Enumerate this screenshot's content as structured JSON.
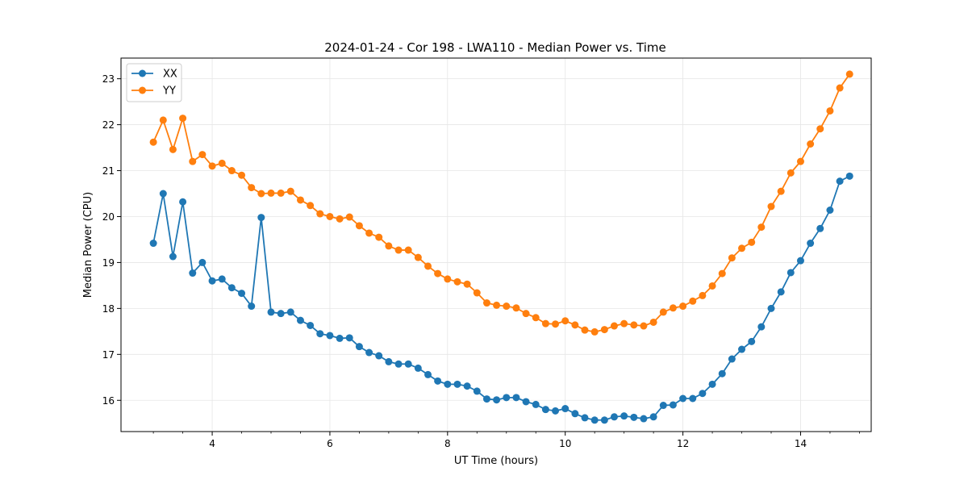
{
  "chart_data": {
    "type": "line",
    "title": "2024-01-24 - Cor 198 - LWA110 - Median Power vs. Time",
    "xlabel": "UT Time (hours)",
    "ylabel": "Median Power (CPU)",
    "xlim": [
      2.45,
      15.2
    ],
    "ylim": [
      15.32,
      23.45
    ],
    "xticks": [
      4,
      6,
      8,
      10,
      12,
      14
    ],
    "xtick_labels": [
      "4",
      "6",
      "8",
      "10",
      "12",
      "14"
    ],
    "yticks": [
      16,
      17,
      18,
      19,
      20,
      21,
      22,
      23
    ],
    "ytick_labels": [
      "16",
      "17",
      "18",
      "19",
      "20",
      "21",
      "22",
      "23"
    ],
    "grid": true,
    "legend_position": "top-left",
    "x": [
      3.0,
      3.167,
      3.333,
      3.5,
      3.667,
      3.833,
      4.0,
      4.167,
      4.333,
      4.5,
      4.667,
      4.833,
      5.0,
      5.167,
      5.333,
      5.5,
      5.667,
      5.833,
      6.0,
      6.167,
      6.333,
      6.5,
      6.667,
      6.833,
      7.0,
      7.167,
      7.333,
      7.5,
      7.667,
      7.833,
      8.0,
      8.167,
      8.333,
      8.5,
      8.667,
      8.833,
      9.0,
      9.167,
      9.333,
      9.5,
      9.667,
      9.833,
      10.0,
      10.167,
      10.333,
      10.5,
      10.667,
      10.833,
      11.0,
      11.167,
      11.333,
      11.5,
      11.667,
      11.833,
      12.0,
      12.167,
      12.333,
      12.5,
      12.667,
      12.833,
      13.0,
      13.167,
      13.333,
      13.5,
      13.667,
      13.833,
      14.0,
      14.167,
      14.333,
      14.5,
      14.667,
      14.833
    ],
    "series": [
      {
        "name": "XX",
        "color": "#1f77b4",
        "values": [
          19.42,
          20.5,
          19.13,
          20.32,
          18.77,
          19.0,
          18.6,
          18.64,
          18.45,
          18.33,
          18.05,
          19.98,
          17.92,
          17.89,
          17.92,
          17.74,
          17.63,
          17.45,
          17.41,
          17.35,
          17.36,
          17.17,
          17.04,
          16.97,
          16.84,
          16.79,
          16.79,
          16.7,
          16.56,
          16.42,
          16.35,
          16.35,
          16.31,
          16.2,
          16.03,
          16.01,
          16.06,
          16.06,
          15.97,
          15.91,
          15.8,
          15.77,
          15.82,
          15.71,
          15.62,
          15.57,
          15.57,
          15.64,
          15.66,
          15.63,
          15.6,
          15.64,
          15.89,
          15.9,
          16.04,
          16.04,
          16.15,
          16.35,
          16.58,
          16.9,
          17.11,
          17.28,
          17.6,
          18.0,
          18.36,
          18.78,
          19.04,
          19.42,
          19.74,
          20.14,
          20.77,
          20.88
        ]
      },
      {
        "name": "YY",
        "color": "#ff7f0e",
        "values": [
          21.62,
          22.1,
          21.46,
          22.14,
          21.2,
          21.35,
          21.1,
          21.16,
          21.0,
          20.9,
          20.63,
          20.5,
          20.51,
          20.51,
          20.55,
          20.36,
          20.24,
          20.06,
          20.0,
          19.95,
          19.99,
          19.8,
          19.64,
          19.55,
          19.36,
          19.27,
          19.27,
          19.11,
          18.92,
          18.76,
          18.64,
          18.58,
          18.53,
          18.34,
          18.12,
          18.07,
          18.05,
          18.01,
          17.89,
          17.8,
          17.67,
          17.66,
          17.73,
          17.64,
          17.53,
          17.49,
          17.54,
          17.62,
          17.67,
          17.64,
          17.62,
          17.7,
          17.92,
          18.01,
          18.05,
          18.16,
          18.28,
          18.49,
          18.76,
          19.1,
          19.31,
          19.44,
          19.77,
          20.22,
          20.55,
          20.95,
          21.2,
          21.58,
          21.91,
          22.3,
          22.8,
          23.1
        ]
      }
    ]
  }
}
